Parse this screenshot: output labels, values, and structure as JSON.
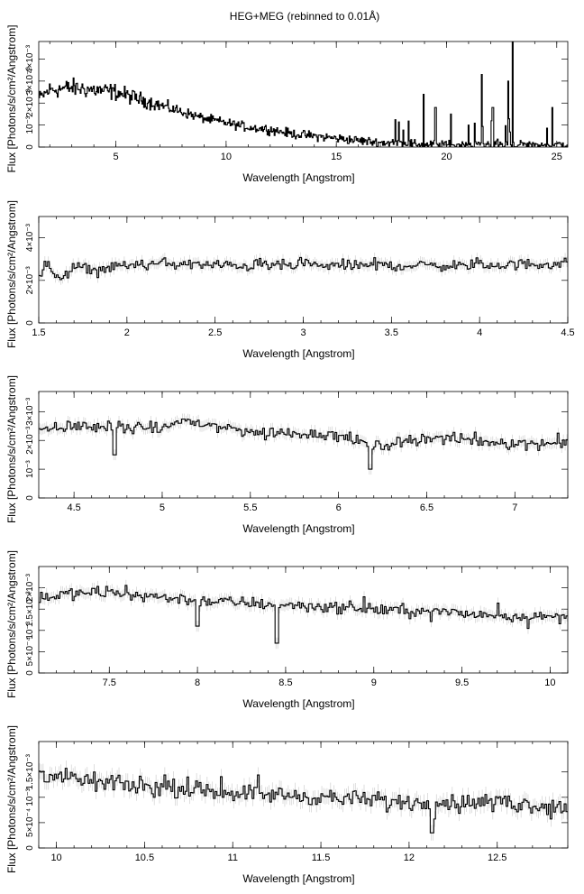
{
  "title": "HEG+MEG (rebinned to 0.01Å)",
  "chart_data": [
    {
      "type": "line",
      "style": "histogram-step with error bars",
      "xlabel": "Wavelength [Angstrom]",
      "ylabel": "Flux [Photons/s/cm²/Angstrom]",
      "xlim": [
        1.5,
        25.5
      ],
      "ylim": [
        0,
        0.0048
      ],
      "xticks": [
        5,
        10,
        15,
        20,
        25
      ],
      "yticks": [
        0,
        0.001,
        0.002,
        0.003,
        0.004
      ],
      "ytick_labels": [
        "0",
        "10⁻³",
        "2×10⁻³",
        "3×10⁻³",
        "4×10⁻³"
      ],
      "series": [
        {
          "x": [
            1.5,
            2,
            3,
            4,
            5,
            6,
            7,
            8,
            9,
            10,
            11,
            12,
            13,
            14,
            15,
            16,
            17,
            18,
            19,
            20,
            21,
            22,
            23,
            24,
            25,
            25.5
          ],
          "y": [
            0.0022,
            0.0026,
            0.0027,
            0.0026,
            0.0025,
            0.0022,
            0.0019,
            0.0016,
            0.0013,
            0.0011,
            0.0009,
            0.0008,
            0.0006,
            0.0005,
            0.0004,
            0.0003,
            0.0002,
            0.0002,
            0.0001,
            0.0001,
            0.0001,
            0.0001,
            0.0001,
            0.0001,
            0.0001,
            0.0001
          ],
          "lines": [
            {
              "x": 18.97,
              "y": 0.0024
            },
            {
              "x": 19.5,
              "y": 0.0018
            },
            {
              "x": 20.2,
              "y": 0.0015
            },
            {
              "x": 21.6,
              "y": 0.0033
            },
            {
              "x": 22.1,
              "y": 0.0018
            },
            {
              "x": 22.8,
              "y": 0.003
            },
            {
              "x": 23.0,
              "y": 0.0048
            },
            {
              "x": 24.8,
              "y": 0.0018
            }
          ]
        }
      ]
    },
    {
      "type": "line",
      "style": "histogram-step with error bars",
      "xlabel": "Wavelength [Angstrom]",
      "ylabel": "Flux [Photons/s/cm²/Angstrom]",
      "xlim": [
        1.5,
        4.5
      ],
      "ylim": [
        0,
        0.005
      ],
      "xticks": [
        1.5,
        2,
        2.5,
        3,
        3.5,
        4,
        4.5
      ],
      "yticks": [
        0,
        0.002,
        0.004
      ],
      "ytick_labels": [
        "0",
        "2×10⁻³",
        "4×10⁻³"
      ],
      "series": [
        {
          "x": [
            1.5,
            1.55,
            1.6,
            1.7,
            1.8,
            1.9,
            2,
            2.2,
            2.5,
            3,
            3.5,
            4,
            4.5
          ],
          "y": [
            0.0022,
            0.0028,
            0.002,
            0.0026,
            0.0025,
            0.0026,
            0.0027,
            0.0028,
            0.0027,
            0.0027,
            0.0027,
            0.0027,
            0.0028
          ],
          "noise": 0.00022
        }
      ]
    },
    {
      "type": "line",
      "style": "histogram-step with error bars",
      "xlabel": "Wavelength [Angstrom]",
      "ylabel": "Flux [Photons/s/cm²/Angstrom]",
      "xlim": [
        4.3,
        7.3
      ],
      "ylim": [
        0,
        0.0037
      ],
      "xticks": [
        4.5,
        5,
        5.5,
        6,
        6.5,
        7
      ],
      "yticks": [
        0,
        0.001,
        0.002,
        0.003
      ],
      "ytick_labels": [
        "0",
        "10⁻³",
        "2×10⁻³",
        "3×10⁻³"
      ],
      "series": [
        {
          "x": [
            4.3,
            4.5,
            5,
            5.1,
            5.5,
            6,
            6.2,
            6.5,
            7,
            7.3
          ],
          "y": [
            0.0024,
            0.0025,
            0.0024,
            0.0027,
            0.0023,
            0.0022,
            0.0018,
            0.0021,
            0.0019,
            0.0019
          ],
          "noise": 0.00017,
          "dips": [
            {
              "x": 4.73,
              "y": 0.0015
            },
            {
              "x": 6.18,
              "y": 0.001
            }
          ]
        }
      ]
    },
    {
      "type": "line",
      "style": "histogram-step with error bars",
      "xlabel": "Wavelength [Angstrom]",
      "ylabel": "Flux [Photons/s/cm²/Angstrom]",
      "xlim": [
        7.1,
        10.1
      ],
      "ylim": [
        0,
        0.0025
      ],
      "xticks": [
        7.5,
        8,
        8.5,
        9,
        9.5,
        10
      ],
      "yticks": [
        0,
        0.0005,
        0.001,
        0.0015,
        0.002
      ],
      "ytick_labels": [
        "0",
        "5×10⁻⁴",
        "10⁻³",
        "1.5×10⁻³",
        "2×10⁻³"
      ],
      "series": [
        {
          "x": [
            7.1,
            7.5,
            8,
            8.5,
            9,
            9.5,
            10,
            10.1
          ],
          "y": [
            0.0018,
            0.0019,
            0.0017,
            0.0016,
            0.0015,
            0.0014,
            0.0013,
            0.0013
          ],
          "noise": 0.00012,
          "dips": [
            {
              "x": 8.0,
              "y": 0.0011
            },
            {
              "x": 8.45,
              "y": 0.0007
            }
          ]
        }
      ]
    },
    {
      "type": "line",
      "style": "histogram-step with error bars",
      "xlabel": "Wavelength [Angstrom]",
      "ylabel": "Flux [Photons/s/cm²/Angstrom]",
      "xlim": [
        9.9,
        12.9
      ],
      "ylim": [
        0,
        0.0021
      ],
      "xticks": [
        10,
        10.5,
        11,
        11.5,
        12,
        12.5
      ],
      "yticks": [
        0,
        0.0005,
        0.001,
        0.0015
      ],
      "ytick_labels": [
        "0",
        "5×10⁻⁴",
        "10⁻³",
        "1.5×10⁻³"
      ],
      "series": [
        {
          "x": [
            9.9,
            10,
            10.5,
            11,
            11.5,
            12,
            12.5,
            12.9
          ],
          "y": [
            0.0015,
            0.0014,
            0.0012,
            0.0011,
            0.001,
            0.0009,
            0.0009,
            0.0008
          ],
          "noise": 0.00014,
          "dips": [
            {
              "x": 12.13,
              "y": 0.0003
            }
          ]
        }
      ]
    }
  ]
}
